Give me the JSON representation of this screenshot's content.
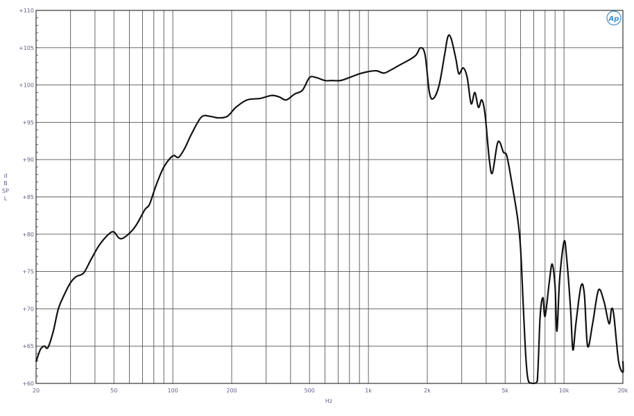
{
  "chart_data": {
    "type": "line",
    "title": "",
    "xlabel": "Hz",
    "ylabel": "dB SPL",
    "x_scale": "log",
    "xlim": [
      20,
      20000
    ],
    "ylim": [
      60,
      110
    ],
    "grid": true,
    "x_tick_labels": [
      {
        "v": 20,
        "t": "20"
      },
      {
        "v": 50,
        "t": "50"
      },
      {
        "v": 100,
        "t": "100"
      },
      {
        "v": 200,
        "t": "200"
      },
      {
        "v": 500,
        "t": "500"
      },
      {
        "v": 1000,
        "t": "1k"
      },
      {
        "v": 2000,
        "t": "2k"
      },
      {
        "v": 5000,
        "t": "5k"
      },
      {
        "v": 10000,
        "t": "10k"
      },
      {
        "v": 20000,
        "t": "20k"
      }
    ],
    "y_tick_labels": [
      {
        "v": 110,
        "t": "+110"
      },
      {
        "v": 105,
        "t": "+105"
      },
      {
        "v": 100,
        "t": "+100"
      },
      {
        "v": 95,
        "t": "+95"
      },
      {
        "v": 90,
        "t": "+90"
      },
      {
        "v": 85,
        "t": "+85"
      },
      {
        "v": 80,
        "t": "+80"
      },
      {
        "v": 75,
        "t": "+75"
      },
      {
        "v": 70,
        "t": "+70"
      },
      {
        "v": 65,
        "t": "+65"
      },
      {
        "v": 60,
        "t": "+60"
      }
    ],
    "series": [
      {
        "color": "#111111",
        "x": [
          20,
          21,
          22,
          23,
          24.5,
          26,
          28,
          30,
          32,
          35,
          38,
          42,
          47,
          50,
          53,
          56,
          62,
          66,
          72,
          76,
          82,
          90,
          100,
          107,
          115,
          125,
          140,
          155,
          170,
          190,
          210,
          240,
          280,
          320,
          350,
          380,
          420,
          460,
          500,
          540,
          600,
          650,
          720,
          800,
          900,
          1000,
          1100,
          1200,
          1300,
          1450,
          1600,
          1750,
          1850,
          1950,
          2050,
          2150,
          2300,
          2450,
          2550,
          2650,
          2800,
          2900,
          3050,
          3200,
          3350,
          3500,
          3650,
          3800,
          3950,
          4150,
          4300,
          4550,
          4700,
          4900,
          5100,
          5400,
          5800,
          6000,
          6200,
          6400,
          6600,
          7000,
          7300,
          7550,
          7800,
          8000,
          8400,
          8700,
          9000,
          9200,
          9500,
          10000,
          10300,
          10800,
          11100,
          11500,
          12200,
          12700,
          13200,
          14000,
          15000,
          16000,
          17000,
          17500,
          18000,
          19000,
          20000,
          21000
        ],
        "y": [
          62.9,
          64.5,
          65,
          64.8,
          67,
          70,
          72,
          73.5,
          74.3,
          74.8,
          76.5,
          78.5,
          80,
          80.3,
          79.5,
          79.5,
          80.5,
          81.5,
          83.3,
          84,
          86.5,
          89,
          90.5,
          90.3,
          91.5,
          93.5,
          95.7,
          95.8,
          95.6,
          95.8,
          97,
          98,
          98.2,
          98.6,
          98.4,
          98,
          98.8,
          99.3,
          101,
          101,
          100.6,
          100.6,
          100.6,
          101,
          101.5,
          101.8,
          101.9,
          101.6,
          102,
          102.7,
          103.3,
          104,
          105,
          104,
          99,
          98.2,
          100,
          104,
          106.5,
          106.2,
          103.5,
          101.5,
          102.3,
          101,
          97.5,
          99,
          97,
          98,
          96,
          90,
          88.2,
          92,
          92.3,
          91,
          90.5,
          87,
          82,
          78,
          70,
          63,
          60.2,
          60,
          60.3,
          69,
          71.5,
          69,
          73.5,
          76,
          73,
          67,
          74,
          79,
          77,
          70,
          64.5,
          68,
          73,
          72,
          65,
          68,
          72.5,
          71,
          68,
          70,
          69,
          63,
          61.5,
          63
        ]
      }
    ]
  },
  "logo": {
    "text": "Ap",
    "color": "#3a8fd0"
  }
}
